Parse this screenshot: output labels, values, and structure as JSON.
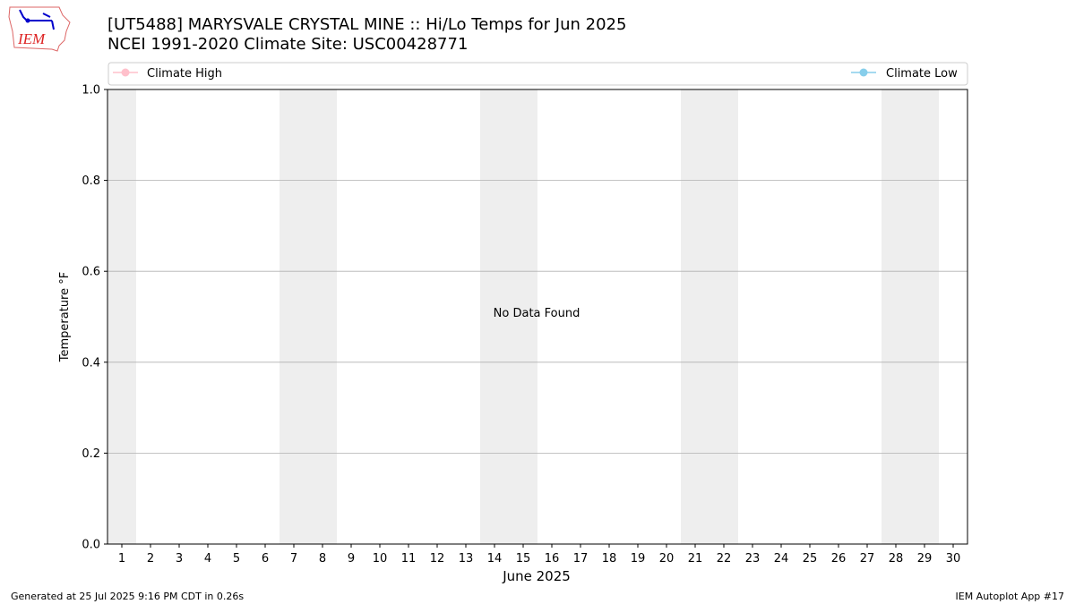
{
  "title_line1": "[UT5488] MARYSVALE CRYSTAL MINE :: Hi/Lo Temps for Jun 2025",
  "title_line2": "NCEI 1991-2020 Climate Site: USC00428771",
  "logo_text": "IEM",
  "footer_left": "Generated at 25 Jul 2025 9:16 PM CDT in 0.26s",
  "footer_right": "IEM Autoplot App #17",
  "chart_data": {
    "type": "line",
    "xlabel": "June 2025",
    "ylabel": "Temperature °F",
    "xlim": [
      0.5,
      30.5
    ],
    "ylim": [
      0.0,
      1.0
    ],
    "x_ticks": [
      1,
      2,
      3,
      4,
      5,
      6,
      7,
      8,
      9,
      10,
      11,
      12,
      13,
      14,
      15,
      16,
      17,
      18,
      19,
      20,
      21,
      22,
      23,
      24,
      25,
      26,
      27,
      28,
      29,
      30
    ],
    "y_ticks": [
      "0.0",
      "0.2",
      "0.4",
      "0.6",
      "0.8",
      "1.0"
    ],
    "y_tick_values": [
      0,
      0.2,
      0.4,
      0.6,
      0.8,
      1.0
    ],
    "grid": "horizontal",
    "weekend_shading": [
      [
        0.5,
        1.5
      ],
      [
        6.5,
        8.5
      ],
      [
        13.5,
        15.5
      ],
      [
        20.5,
        22.5
      ],
      [
        27.5,
        29.5
      ]
    ],
    "annotation": "No Data Found",
    "series": [
      {
        "name": "Climate High",
        "color": "#ffc0cb",
        "values": []
      },
      {
        "name": "Climate Low",
        "color": "#87ceeb",
        "values": []
      }
    ]
  }
}
